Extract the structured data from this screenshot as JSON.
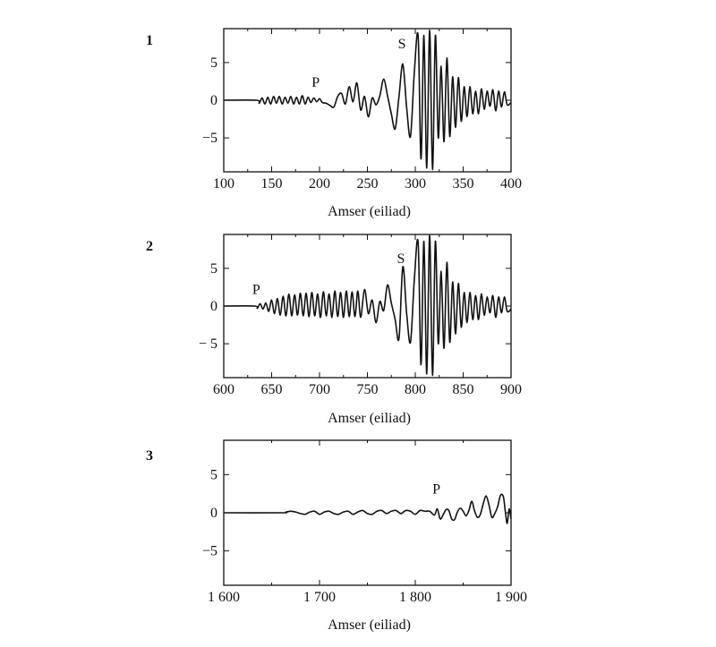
{
  "chart_data": [
    {
      "type": "line",
      "number": "1",
      "title": "",
      "xlabel": "Amser (eiliad)",
      "ylabel": "",
      "xlim": [
        100,
        400
      ],
      "ylim": [
        -9.5,
        9.5
      ],
      "xticks": [
        100,
        150,
        200,
        250,
        300,
        350,
        400
      ],
      "xtick_labels": [
        "100",
        "150",
        "200",
        "250",
        "300",
        "350",
        "400"
      ],
      "yticks": [
        5,
        0,
        -5
      ],
      "ytick_labels": [
        "5",
        "0",
        "−5"
      ],
      "annotations": [
        {
          "text": "P",
          "x": 196,
          "y": 1.8
        },
        {
          "text": "S",
          "x": 286,
          "y": 6.9
        }
      ],
      "series": [
        {
          "x": [
            100,
            134,
            137,
            140,
            143,
            146,
            149,
            152,
            155,
            158,
            161,
            164,
            167,
            170,
            173,
            176,
            179,
            182,
            185,
            188,
            191,
            194,
            197,
            200,
            203,
            207,
            211,
            215,
            219,
            223,
            227,
            231,
            235,
            239,
            243,
            247,
            251,
            255,
            259,
            263,
            267,
            271,
            275,
            279,
            283,
            287,
            291,
            295,
            299,
            303,
            306,
            309,
            312,
            315,
            318,
            321,
            324,
            327,
            330,
            333,
            336,
            339,
            342,
            345,
            348,
            351,
            354,
            357,
            360,
            363,
            366,
            369,
            372,
            375,
            378,
            381,
            384,
            387,
            390,
            393,
            396,
            400
          ],
          "y": [
            0,
            0,
            -0.4,
            0.3,
            -0.5,
            0.4,
            -0.5,
            0.5,
            -0.4,
            0.5,
            -0.5,
            0.4,
            -0.4,
            0.5,
            -0.5,
            0.4,
            -0.5,
            0.6,
            -0.5,
            0.4,
            -0.3,
            0.3,
            -0.2,
            0.2,
            -0.3,
            -0.4,
            -0.7,
            -0.9,
            0.5,
            0.9,
            -0.5,
            1.8,
            -0.2,
            2.3,
            -1.3,
            0.5,
            -2.2,
            0.3,
            -0.6,
            0.6,
            2.8,
            0.6,
            -1.8,
            -3.8,
            0.5,
            4.8,
            -1.0,
            -4.8,
            3.7,
            8.5,
            -7.8,
            8.6,
            -9.0,
            9.3,
            -9.2,
            8.6,
            -5.0,
            4.5,
            -5.5,
            5.6,
            -4.8,
            3.1,
            -3.6,
            3.0,
            -2.8,
            1.8,
            -2.2,
            1.8,
            -1.8,
            1.2,
            -1.8,
            1.5,
            -1.2,
            1.2,
            -0.8,
            1.4,
            -1.4,
            1.2,
            -0.9,
            1.1,
            -0.6,
            -0.3
          ]
        }
      ]
    },
    {
      "type": "line",
      "number": "2",
      "title": "",
      "xlabel": "Amser (eiliad)",
      "ylabel": "",
      "xlim": [
        600,
        900
      ],
      "ylim": [
        -9.5,
        9.5
      ],
      "xticks": [
        600,
        650,
        700,
        750,
        800,
        850,
        900
      ],
      "xtick_labels": [
        "600",
        "650",
        "700",
        "750",
        "800",
        "850",
        "900"
      ],
      "yticks": [
        5,
        0,
        -5
      ],
      "ytick_labels": [
        "5",
        "0",
        "− 5"
      ],
      "annotations": [
        {
          "text": "P",
          "x": 634,
          "y": 1.6
        },
        {
          "text": "S",
          "x": 785,
          "y": 5.7
        }
      ],
      "series": [
        {
          "x": [
            600,
            632,
            635,
            638,
            641,
            644,
            647,
            650,
            653,
            656,
            659,
            662,
            665,
            668,
            671,
            674,
            677,
            680,
            683,
            686,
            689,
            692,
            695,
            698,
            701,
            704,
            707,
            710,
            713,
            716,
            719,
            722,
            725,
            728,
            731,
            734,
            737,
            740,
            743,
            747,
            751,
            755,
            759,
            763,
            767,
            771,
            775,
            779,
            783,
            787,
            791,
            795,
            799,
            803,
            806,
            809,
            812,
            815,
            818,
            821,
            824,
            827,
            830,
            833,
            836,
            839,
            842,
            845,
            848,
            851,
            854,
            857,
            860,
            863,
            866,
            869,
            872,
            875,
            878,
            881,
            884,
            887,
            890,
            893,
            896,
            900
          ],
          "y": [
            0,
            0,
            -0.3,
            0.3,
            -0.4,
            0.4,
            -0.7,
            0.8,
            -1.0,
            1.0,
            -1.2,
            1.3,
            -1.3,
            1.6,
            -1.3,
            1.5,
            -1.2,
            1.7,
            -1.3,
            1.7,
            -1.4,
            1.8,
            -1.3,
            1.6,
            -1.5,
            1.9,
            -1.3,
            1.6,
            -1.5,
            2.0,
            -1.4,
            1.8,
            -1.5,
            2.0,
            -1.4,
            1.9,
            -1.4,
            2.0,
            -1.5,
            2.2,
            -1.0,
            0.8,
            -2.2,
            0.6,
            -0.6,
            2.8,
            0.4,
            -1.8,
            -4.3,
            5.2,
            -1.0,
            -4.8,
            3.5,
            8.4,
            -7.8,
            8.6,
            -9.0,
            9.4,
            -9.2,
            8.6,
            -5.0,
            4.6,
            -5.6,
            5.8,
            -4.8,
            3.2,
            -3.7,
            3.0,
            -2.8,
            1.8,
            -2.2,
            1.8,
            -1.8,
            1.4,
            -1.8,
            1.6,
            -1.2,
            1.2,
            -0.9,
            1.4,
            -1.5,
            1.2,
            -0.9,
            1.2,
            -0.7,
            -0.4
          ]
        }
      ]
    },
    {
      "type": "line",
      "number": "3",
      "title": "",
      "xlabel": "Amser (eiliad)",
      "ylabel": "",
      "xlim": [
        1600,
        1900
      ],
      "ylim": [
        -9.5,
        9.5
      ],
      "xticks": [
        1600,
        1700,
        1800,
        1900
      ],
      "xtick_labels": [
        "1 600",
        "1 700",
        "1 800",
        "1 900"
      ],
      "yticks": [
        5,
        0,
        -5
      ],
      "ytick_labels": [
        "5",
        "0",
        "−5"
      ],
      "annotations": [
        {
          "text": "P",
          "x": 1822,
          "y": 2.5
        }
      ],
      "series": [
        {
          "x": [
            1600,
            1660,
            1665,
            1670,
            1675,
            1680,
            1685,
            1690,
            1695,
            1700,
            1705,
            1710,
            1715,
            1720,
            1725,
            1730,
            1735,
            1740,
            1745,
            1750,
            1755,
            1760,
            1765,
            1770,
            1775,
            1780,
            1785,
            1790,
            1795,
            1800,
            1805,
            1810,
            1815,
            1820,
            1823,
            1826,
            1829,
            1832,
            1835,
            1838,
            1841,
            1844,
            1847,
            1850,
            1853,
            1856,
            1859,
            1862,
            1865,
            1868,
            1871,
            1874,
            1877,
            1880,
            1883,
            1886,
            1889,
            1892,
            1894,
            1896,
            1898,
            1900
          ],
          "y": [
            0,
            0,
            0.1,
            0.2,
            0.1,
            -0.1,
            -0.2,
            0.1,
            0.2,
            -0.2,
            0.1,
            0.2,
            -0.1,
            -0.2,
            0.1,
            0.2,
            -0.2,
            0.1,
            0.3,
            -0.1,
            -0.2,
            0.2,
            0.3,
            -0.1,
            0.2,
            0.3,
            -0.1,
            0.3,
            0.2,
            -0.2,
            0.3,
            0.2,
            0.2,
            -0.3,
            0.5,
            -0.8,
            -0.3,
            0.4,
            0.3,
            -0.8,
            -0.9,
            0.1,
            0.6,
            0.2,
            -0.4,
            0.3,
            1.5,
            0.2,
            -0.6,
            -0.2,
            1.2,
            2.2,
            1.0,
            -0.6,
            -0.1,
            0.8,
            2.3,
            2.1,
            0.2,
            -1.4,
            0.5,
            -0.8
          ]
        }
      ]
    }
  ]
}
